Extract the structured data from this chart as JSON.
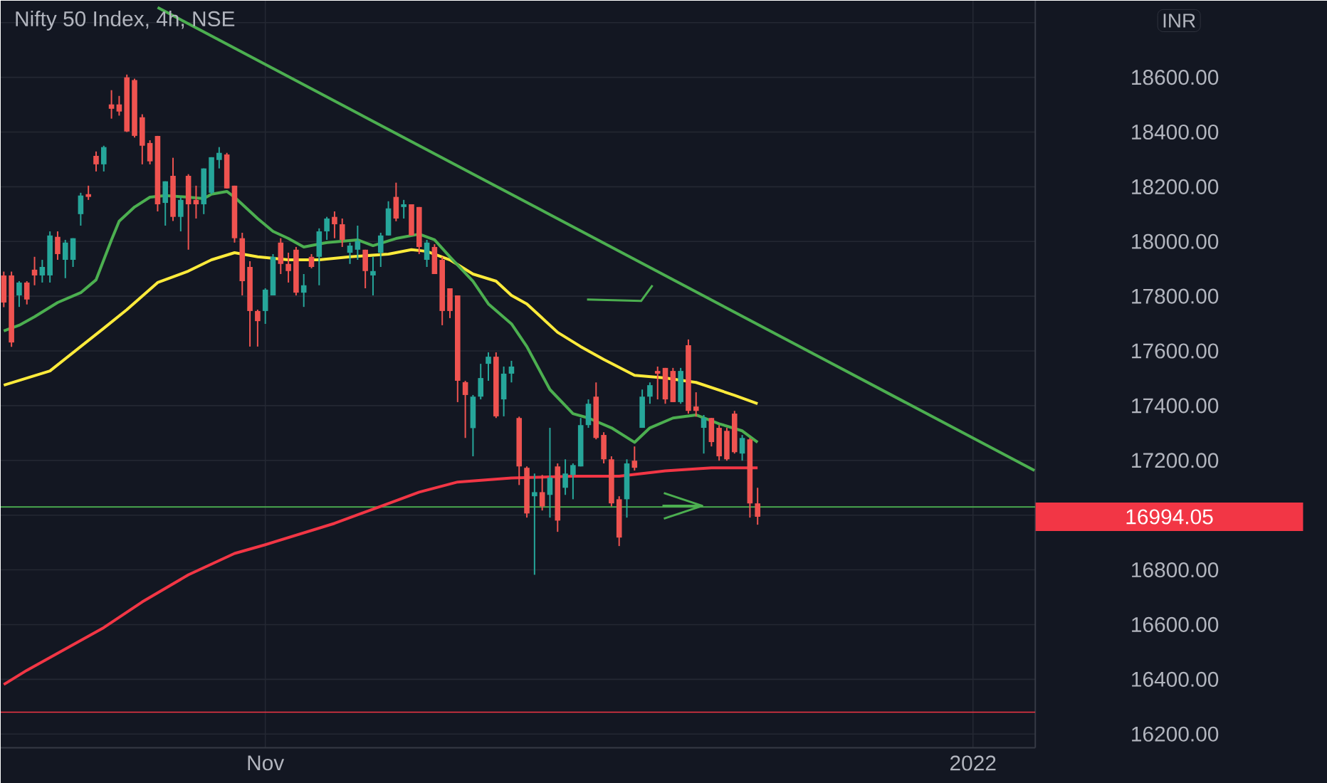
{
  "chart_data": {
    "type": "candlestick",
    "title": "Nifty 50 Index, 4h, NSE",
    "categories": [
      null,
      null,
      null,
      null,
      null,
      null,
      null,
      null,
      null,
      null,
      null,
      null,
      null,
      null,
      null,
      null,
      null,
      null,
      null,
      null,
      null,
      null,
      null,
      null,
      null,
      null,
      null,
      null,
      null,
      null,
      null,
      null,
      null,
      null,
      "Nov",
      null,
      null,
      null,
      null,
      null,
      null,
      null,
      null,
      null,
      null,
      null,
      null,
      null,
      null,
      null,
      null,
      null,
      null,
      null,
      null,
      null,
      null,
      null,
      null,
      null,
      null,
      null,
      null,
      null,
      null,
      null,
      null,
      null,
      null,
      null,
      null,
      null,
      null,
      null,
      null,
      null,
      null,
      null,
      null,
      null,
      null,
      null,
      null,
      null,
      null,
      null,
      null,
      null,
      null,
      null,
      null,
      null,
      null,
      null,
      null,
      null,
      null,
      null,
      null,
      null,
      null,
      null,
      null,
      null,
      null,
      null,
      null,
      null,
      null,
      null,
      null,
      null,
      null,
      null,
      null,
      null,
      null,
      null,
      null,
      null,
      null,
      null,
      null,
      null,
      null,
      null,
      "2022",
      null,
      null,
      null,
      null,
      null,
      null,
      null,
      null
    ],
    "ohlc": [
      [
        17876,
        17890,
        17760,
        17777
      ],
      [
        17876,
        17890,
        17615,
        17631
      ],
      [
        17803,
        17855,
        17761,
        17850
      ],
      [
        17850,
        17855,
        17770,
        17788
      ],
      [
        17897,
        17944,
        17840,
        17876
      ],
      [
        17876,
        17933,
        17850,
        17907
      ],
      [
        17876,
        18037,
        17850,
        18022
      ],
      [
        18017,
        18037,
        17933,
        17954
      ],
      [
        17933,
        18006,
        17866,
        17996
      ],
      [
        17933,
        18012,
        17907,
        18012
      ],
      [
        18100,
        18178,
        18058,
        18168
      ],
      [
        18173,
        18204,
        18152,
        18163
      ],
      [
        18313,
        18329,
        18256,
        18282
      ],
      [
        18282,
        18350,
        18256,
        18345
      ],
      [
        18501,
        18553,
        18449,
        18485
      ],
      [
        18501,
        18532,
        18460,
        18475
      ],
      [
        18600,
        18610,
        18400,
        18402
      ],
      [
        18590,
        18595,
        18380,
        18386
      ],
      [
        18454,
        18465,
        18282,
        18350
      ],
      [
        18360,
        18370,
        18282,
        18293
      ],
      [
        18386,
        18386,
        18110,
        18136
      ],
      [
        18141,
        18220,
        18058,
        18220
      ],
      [
        18240,
        18306,
        18075,
        18090
      ],
      [
        18090,
        18162,
        18037,
        18152
      ],
      [
        18240,
        18246,
        17970,
        18136
      ],
      [
        18152,
        18204,
        18084,
        18136
      ],
      [
        18136,
        18267,
        18100,
        18267
      ],
      [
        18178,
        18308,
        18173,
        18308
      ],
      [
        18298,
        18345,
        18267,
        18324
      ],
      [
        18318,
        18324,
        18194,
        18194
      ],
      [
        18204,
        18204,
        17996,
        18012
      ],
      [
        18012,
        18032,
        17803,
        17855
      ],
      [
        17907,
        17928,
        17616,
        17746
      ],
      [
        17746,
        17751,
        17616,
        17709
      ],
      [
        17746,
        17829,
        17699,
        17824
      ],
      [
        17803,
        17954,
        17803,
        17944
      ],
      [
        17996,
        18012,
        17881,
        17918
      ],
      [
        17918,
        17959,
        17850,
        17892
      ],
      [
        17970,
        17980,
        17803,
        17813
      ],
      [
        17813,
        17881,
        17761,
        17840
      ],
      [
        17944,
        17954,
        17902,
        17907
      ],
      [
        17944,
        18048,
        17840,
        18037
      ],
      [
        18037,
        18090,
        18006,
        18084
      ],
      [
        18090,
        18110,
        18012,
        18063
      ],
      [
        18063,
        18084,
        17980,
        18006
      ],
      [
        17959,
        17996,
        17918,
        17985
      ],
      [
        17970,
        18058,
        17933,
        18002
      ],
      [
        17970,
        17970,
        17829,
        17892
      ],
      [
        17876,
        17944,
        17803,
        17892
      ],
      [
        17959,
        18032,
        17907,
        18022
      ],
      [
        18022,
        18147,
        18022,
        18121
      ],
      [
        18163,
        18215,
        18074,
        18084
      ],
      [
        18126,
        18152,
        18084,
        18136
      ],
      [
        18136,
        18136,
        18022,
        18022
      ],
      [
        18126,
        18126,
        17954,
        17980
      ],
      [
        17933,
        18006,
        17907,
        17996
      ],
      [
        17980,
        17990,
        17881,
        17881
      ],
      [
        17933,
        17944,
        17694,
        17746
      ],
      [
        17829,
        17829,
        17720,
        17746
      ],
      [
        17803,
        17803,
        17413,
        17491
      ],
      [
        17486,
        17491,
        17282,
        17439
      ],
      [
        17318,
        17439,
        17215,
        17433
      ],
      [
        17433,
        17553,
        17423,
        17501
      ],
      [
        17553,
        17595,
        17491,
        17579
      ],
      [
        17579,
        17595,
        17355,
        17361
      ],
      [
        17423,
        17543,
        17361,
        17517
      ],
      [
        17517,
        17564,
        17485,
        17543
      ],
      [
        17355,
        17360,
        17110,
        17178
      ],
      [
        17173,
        17178,
        16991,
        17006
      ],
      [
        17069,
        17152,
        16782,
        17084
      ],
      [
        17084,
        17147,
        17017,
        17032
      ],
      [
        17074,
        17319,
        16991,
        17137
      ],
      [
        17178,
        17189,
        16939,
        16980
      ],
      [
        17100,
        17204,
        17074,
        17152
      ],
      [
        17147,
        17189,
        17058,
        17183
      ],
      [
        17178,
        17355,
        17178,
        17329
      ],
      [
        17329,
        17423,
        17319,
        17407
      ],
      [
        17433,
        17485,
        17277,
        17282
      ],
      [
        17293,
        17303,
        17189,
        17204
      ],
      [
        17204,
        17215,
        17032,
        17043
      ],
      [
        17058,
        17069,
        16887,
        16918
      ],
      [
        17058,
        17204,
        16991,
        17189
      ],
      [
        17199,
        17251,
        17163,
        17173
      ],
      [
        17319,
        17459,
        17319,
        17433
      ],
      [
        17433,
        17485,
        17407,
        17475
      ],
      [
        17527,
        17543,
        17423,
        17517
      ],
      [
        17538,
        17538,
        17407,
        17423
      ],
      [
        17527,
        17538,
        17413,
        17413
      ],
      [
        17413,
        17538,
        17407,
        17527
      ],
      [
        17621,
        17642,
        17371,
        17381
      ],
      [
        17397,
        17449,
        17360,
        17381
      ],
      [
        17319,
        17366,
        17225,
        17355
      ],
      [
        17355,
        17355,
        17251,
        17267
      ],
      [
        17319,
        17329,
        17199,
        17215
      ],
      [
        17308,
        17319,
        17199,
        17204
      ],
      [
        17371,
        17381,
        17225,
        17230
      ],
      [
        17225,
        17293,
        17199,
        17282
      ],
      [
        17277,
        17282,
        16991,
        17043
      ],
      [
        17043,
        17100,
        16965,
        16994.05
      ],
      null,
      null,
      null,
      null,
      null,
      null,
      null,
      null,
      null,
      null,
      null,
      null,
      null,
      null,
      null,
      null,
      null,
      null,
      null,
      null,
      null,
      null,
      null,
      null,
      null,
      null,
      null,
      null,
      null,
      null,
      null,
      null,
      null,
      null,
      null,
      null
    ],
    "colors": [
      "#ef5350",
      "#ef5350",
      "#26a69a",
      "#ef5350",
      "#ef5350",
      "#26a69a",
      "#26a69a",
      "#ef5350",
      "#26a69a",
      "#26a69a",
      "#26a69a",
      "#ef5350",
      "#ef5350",
      "#26a69a",
      "#ef5350",
      "#ef5350",
      "#ef5350",
      "#ef5350",
      "#ef5350",
      "#ef5350",
      "#ef5350",
      "#26a69a",
      "#ef5350",
      "#26a69a",
      "#ef5350",
      "#ef5350",
      "#26a69a",
      "#26a69a",
      "#26a69a",
      "#ef5350",
      "#ef5350",
      "#ef5350",
      "#ef5350",
      "#ef5350",
      "#26a69a",
      "#26a69a",
      "#ef5350",
      "#ef5350",
      "#ef5350",
      "#26a69a",
      "#ef5350",
      "#26a69a",
      "#26a69a",
      "#ef5350",
      "#ef5350",
      "#26a69a",
      "#26a69a",
      "#ef5350",
      "#26a69a",
      "#26a69a",
      "#26a69a",
      "#ef5350",
      "#26a69a",
      "#ef5350",
      "#ef5350",
      "#26a69a",
      "#ef5350",
      "#ef5350",
      "#ef5350",
      "#ef5350",
      "#ef5350",
      "#26a69a",
      "#26a69a",
      "#26a69a",
      "#ef5350",
      "#26a69a",
      "#26a69a",
      "#ef5350",
      "#ef5350",
      "#26a69a",
      "#ef5350",
      "#26a69a",
      "#ef5350",
      "#26a69a",
      "#26a69a",
      "#26a69a",
      "#26a69a",
      "#ef5350",
      "#ef5350",
      "#ef5350",
      "#ef5350",
      "#26a69a",
      "#ef5350",
      "#26a69a",
      "#26a69a",
      "#ef5350",
      "#ef5350",
      "#ef5350",
      "#26a69a",
      "#ef5350",
      "#ef5350",
      "#26a69a",
      "#ef5350",
      "#ef5350",
      "#ef5350",
      "#ef5350",
      "#26a69a",
      "#ef5350",
      "#ef5350",
      null,
      null,
      null,
      null,
      null,
      null,
      null,
      null,
      null,
      null,
      null,
      null,
      null,
      null,
      null,
      null,
      null,
      null,
      null,
      null,
      null,
      null,
      null,
      null,
      null,
      null,
      null,
      null,
      null,
      null,
      null,
      null,
      null,
      null,
      null,
      null
    ],
    "series": [
      {
        "type": "line",
        "color": "#f23645",
        "values": [
          16381,
          null,
          null,
          16433,
          null,
          null,
          null,
          null,
          null,
          null,
          null,
          null,
          null,
          16589,
          null,
          null,
          null,
          null,
          16683,
          null,
          null,
          null,
          null,
          null,
          16782,
          null,
          null,
          null,
          null,
          null,
          16860,
          null,
          null,
          null,
          16892,
          null,
          null,
          null,
          null,
          null,
          null,
          null,
          null,
          16970,
          null,
          null,
          null,
          null,
          null,
          17032,
          null,
          null,
          null,
          null,
          17084,
          null,
          null,
          null,
          null,
          17121,
          null,
          null,
          null,
          null,
          null,
          null,
          17136,
          null,
          null,
          null,
          null,
          null,
          null,
          null,
          17142,
          null,
          null,
          null,
          null,
          null,
          17142,
          null,
          null,
          null,
          null,
          null,
          17162,
          null,
          null,
          null,
          null,
          null,
          17173,
          null,
          null,
          null,
          null,
          null,
          17173,
          null,
          null,
          null,
          null,
          null,
          null,
          null,
          null,
          null,
          null,
          null,
          null,
          null,
          null,
          null,
          null,
          null,
          null,
          null,
          null,
          null,
          null,
          null,
          null,
          null,
          null,
          null,
          null,
          null,
          null,
          null,
          null,
          null,
          null,
          null,
          null
        ]
      },
      {
        "type": "line",
        "color": "#ffeb3b",
        "values": [
          17475,
          null,
          null,
          null,
          null,
          null,
          17527,
          null,
          null,
          null,
          null,
          null,
          null,
          17683,
          null,
          null,
          17751,
          null,
          null,
          null,
          17850,
          null,
          null,
          null,
          17892,
          null,
          null,
          17933,
          null,
          null,
          17959,
          null,
          null,
          17944,
          null,
          null,
          null,
          17933,
          null,
          null,
          null,
          17933,
          null,
          null,
          null,
          17944,
          null,
          null,
          null,
          null,
          17954,
          null,
          null,
          17970,
          null,
          17964,
          null,
          null,
          17933,
          null,
          null,
          17881,
          null,
          null,
          17855,
          null,
          17803,
          null,
          17772,
          null,
          null,
          null,
          17668,
          null,
          null,
          17616,
          null,
          null,
          17569,
          null,
          null,
          null,
          17511,
          null,
          null,
          null,
          17501,
          null,
          null,
          null,
          17485,
          null,
          null,
          null,
          null,
          17438,
          null,
          null,
          17407,
          null,
          null,
          null,
          null,
          null,
          null,
          null,
          null,
          null,
          null,
          null,
          null,
          null,
          null,
          null,
          null,
          null,
          null,
          null,
          null,
          null,
          null,
          null,
          null,
          null,
          null,
          null,
          null,
          null,
          null,
          null,
          null,
          null,
          null,
          null,
          null
        ]
      },
      {
        "type": "line",
        "color": "#4caf50",
        "values": [
          17673,
          null,
          17694,
          null,
          17725,
          null,
          null,
          17777,
          null,
          null,
          17813,
          null,
          17860,
          17933,
          18006,
          18074,
          null,
          18126,
          null,
          18162,
          null,
          18168,
          null,
          null,
          18162,
          null,
          18157,
          18173,
          null,
          18183,
          18162,
          null,
          18110,
          18084,
          null,
          18037,
          null,
          18011,
          null,
          17980,
          null,
          null,
          17996,
          null,
          null,
          null,
          18006,
          null,
          17985,
          null,
          null,
          18011,
          null,
          null,
          18027,
          null,
          18006,
          null,
          17944,
          null,
          null,
          17855,
          null,
          17772,
          null,
          null,
          17699,
          null,
          17616,
          null,
          null,
          17459,
          null,
          null,
          17371,
          null,
          17355,
          null,
          null,
          17319,
          null,
          null,
          17266,
          null,
          17319,
          null,
          null,
          17355,
          null,
          null,
          17366,
          null,
          null,
          17334,
          null,
          null,
          17308,
          null,
          17266,
          null,
          null,
          null,
          null,
          null,
          null,
          null,
          null,
          null,
          null,
          null,
          null,
          null,
          null,
          null,
          null,
          null,
          null,
          null,
          null,
          null,
          null,
          null,
          null,
          null,
          null,
          null,
          null,
          null,
          null,
          null,
          null,
          null,
          null,
          null,
          null
        ]
      },
      {
        "type": "line",
        "color": "#4caf50",
        "values": [
          null,
          null,
          null,
          null,
          null,
          null,
          null,
          null,
          null,
          null,
          null,
          null,
          null,
          null,
          null,
          null,
          null,
          null,
          null,
          null,
          18855,
          null,
          null,
          null,
          null,
          null,
          null,
          null,
          null,
          null,
          null,
          null,
          null,
          null,
          null,
          null,
          null,
          null,
          null,
          null,
          null,
          null,
          null,
          null,
          null,
          null,
          null,
          null,
          null,
          null,
          null,
          null,
          null,
          null,
          null,
          null,
          null,
          null,
          null,
          null,
          null,
          null,
          null,
          null,
          null,
          null,
          null,
          null,
          null,
          null,
          null,
          null,
          null,
          null,
          null,
          null,
          null,
          null,
          null,
          null,
          null,
          null,
          null,
          null,
          null,
          null,
          null,
          null,
          null,
          null,
          null,
          null,
          null,
          null,
          null,
          null,
          null,
          null,
          null,
          null,
          null,
          null,
          null,
          null,
          null,
          null,
          null,
          null,
          null,
          null,
          null,
          null,
          null,
          null,
          null,
          null,
          null,
          null,
          null,
          null,
          null,
          null,
          null,
          null,
          null,
          null,
          null,
          null,
          null,
          null,
          null,
          null,
          null,
          null,
          17163
        ]
      }
    ],
    "ylim": [
      16150,
      18880
    ],
    "yticks": [
      {
        "value": 16200,
        "label": "16200.00"
      },
      {
        "value": 16400,
        "label": "16400.00"
      },
      {
        "value": 16600,
        "label": "16600.00"
      },
      {
        "value": 16800,
        "label": "16800.00"
      },
      {
        "value": 17000,
        "label": null
      },
      {
        "value": 17200,
        "label": "17200.00"
      },
      {
        "value": 17400,
        "label": "17400.00"
      },
      {
        "value": 17600,
        "label": "17600.00"
      },
      {
        "value": 17800,
        "label": "17800.00"
      },
      {
        "value": 18000,
        "label": "18000.00"
      },
      {
        "value": 18200,
        "label": "18200.00"
      },
      {
        "value": 18400,
        "label": "18400.00"
      },
      {
        "value": 18600,
        "label": "18600.00"
      },
      {
        "value": 18800,
        "label": null
      }
    ],
    "grid": true,
    "ref_lines": [
      {
        "axis": "y",
        "value": 17030,
        "color": "#4caf50"
      },
      {
        "axis": "y",
        "value": 16280,
        "color": "#f23645"
      }
    ],
    "annotations": [
      "INR",
      "16994.05"
    ]
  }
}
